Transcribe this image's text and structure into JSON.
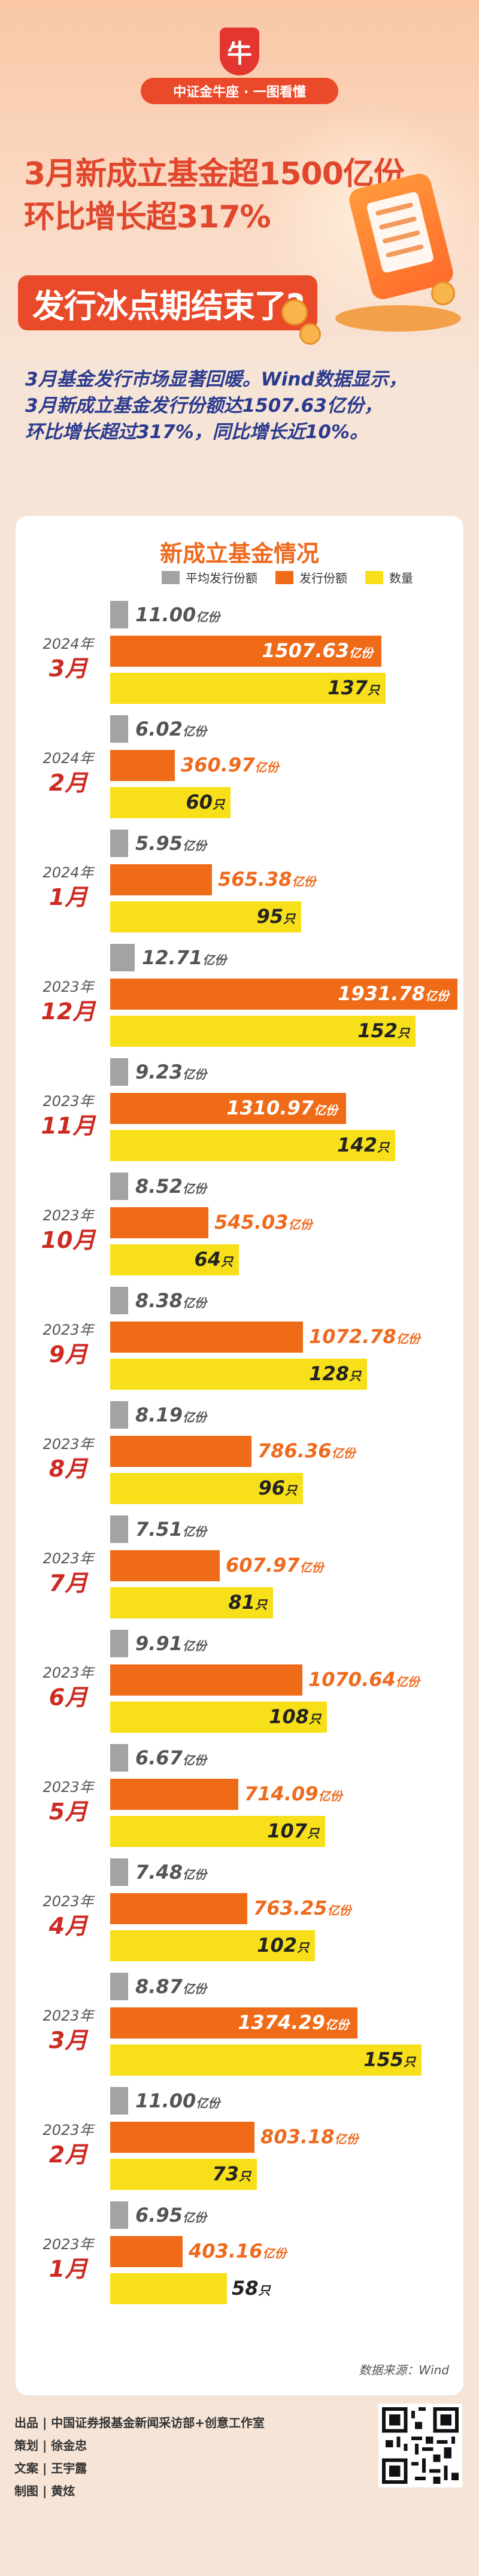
{
  "header": {
    "logo_letter": "牛",
    "banner": "中证金牛座 · 一图看懂",
    "title_line1": "3月新成立基金超1500亿份",
    "title_line2": "环比增长超317%",
    "title_line3": "发行冰点期结束了?"
  },
  "intro": {
    "line1": "3月基金发行市场显著回暖。Wind数据显示，",
    "line2": "3月新成立基金发行份额达1507.63亿份，",
    "line3": "环比增长超过317%，同比增长近10%。"
  },
  "chart_data": {
    "type": "bar",
    "title": "新成立基金情况",
    "legend": [
      "平均发行份额",
      "发行份额",
      "数量"
    ],
    "colors": {
      "avg": "#a3a3a3",
      "amount": "#ef6b17",
      "count": "#f7df19"
    },
    "unit_amount": "亿份",
    "unit_count": "只",
    "groups": [
      {
        "year": "2024年",
        "month": "3月",
        "avg": 11.0,
        "amount": 1507.63,
        "count": 137
      },
      {
        "year": "2024年",
        "month": "2月",
        "avg": 6.02,
        "amount": 360.97,
        "count": 60
      },
      {
        "year": "2024年",
        "month": "1月",
        "avg": 5.95,
        "amount": 565.38,
        "count": 95
      },
      {
        "year": "2023年",
        "month": "12月",
        "avg": 12.71,
        "amount": 1931.78,
        "count": 152
      },
      {
        "year": "2023年",
        "month": "11月",
        "avg": 9.23,
        "amount": 1310.97,
        "count": 142
      },
      {
        "year": "2023年",
        "month": "10月",
        "avg": 8.52,
        "amount": 545.03,
        "count": 64
      },
      {
        "year": "2023年",
        "month": "9月",
        "avg": 8.38,
        "amount": 1072.78,
        "count": 128
      },
      {
        "year": "2023年",
        "month": "8月",
        "avg": 8.19,
        "amount": 786.36,
        "count": 96
      },
      {
        "year": "2023年",
        "month": "7月",
        "avg": 7.51,
        "amount": 607.97,
        "count": 81
      },
      {
        "year": "2023年",
        "month": "6月",
        "avg": 9.91,
        "amount": 1070.64,
        "count": 108
      },
      {
        "year": "2023年",
        "month": "5月",
        "avg": 6.67,
        "amount": 714.09,
        "count": 107
      },
      {
        "year": "2023年",
        "month": "4月",
        "avg": 7.48,
        "amount": 763.25,
        "count": 102
      },
      {
        "year": "2023年",
        "month": "3月",
        "avg": 8.87,
        "amount": 1374.29,
        "count": 155
      },
      {
        "year": "2023年",
        "month": "2月",
        "avg": 11.0,
        "amount": 803.18,
        "count": 73
      },
      {
        "year": "2023年",
        "month": "1月",
        "avg": 6.95,
        "amount": 403.16,
        "count": 58
      }
    ],
    "source": "数据来源：Wind"
  },
  "footer": {
    "line1": "出品 | 中国证券报基金新闻采访部+创意工作室",
    "line2": "策划 | 徐金忠",
    "line3": "文案 | 王宇露",
    "line4": "制图 | 黄炫"
  }
}
